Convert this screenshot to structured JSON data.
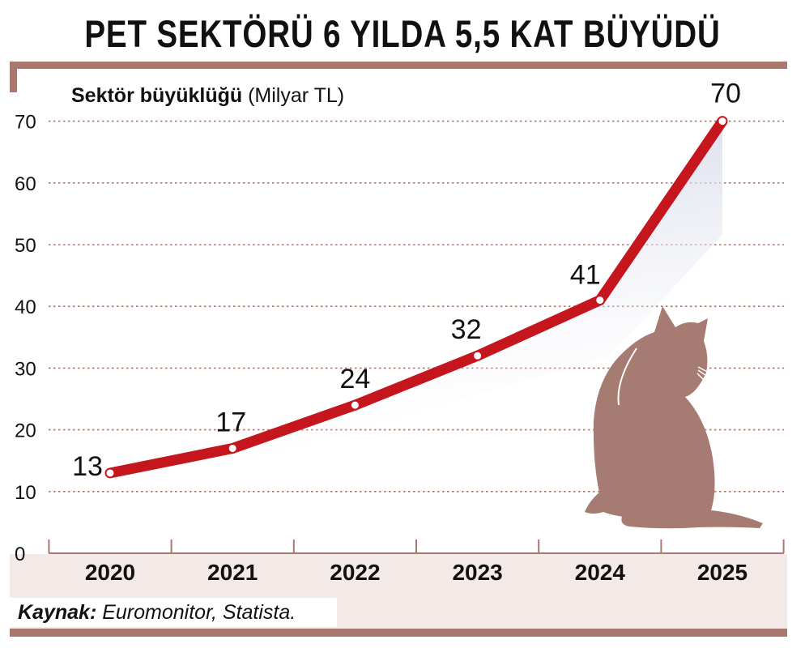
{
  "chart_data": {
    "type": "line",
    "title": "PET SEKTÖRÜ 6 YILDA 5,5 KAT BÜYÜDÜ",
    "ylabel_bold": "Sektör büyüklüğü",
    "ylabel_unit": "(Milyar TL)",
    "categories": [
      "2020",
      "2021",
      "2022",
      "2023",
      "2024",
      "2025"
    ],
    "series": [
      {
        "values": [
          13,
          17,
          24,
          32,
          41,
          70
        ],
        "labels": [
          "13",
          "17",
          "24",
          "32",
          "41",
          "70"
        ]
      }
    ],
    "yticks": [
      "0",
      "10",
      "20",
      "30",
      "40",
      "50",
      "60",
      "70"
    ],
    "ylim": [
      0,
      70
    ],
    "grid": true,
    "colors": {
      "line": "#c4161c",
      "frame": "#a9796f",
      "band": "#f3e9e7",
      "cat": "#a57b72"
    }
  },
  "source": {
    "label": "Kaynak:",
    "text": "Euromonitor, Statista."
  }
}
